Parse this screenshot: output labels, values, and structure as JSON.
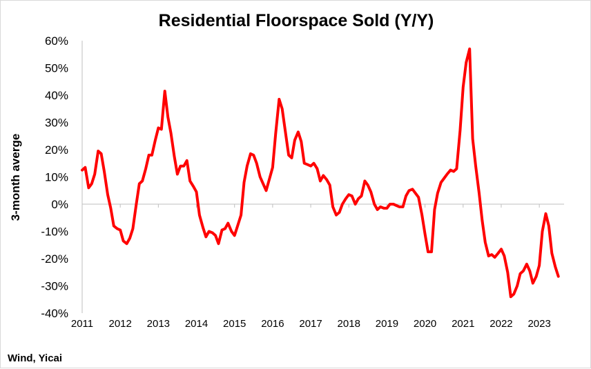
{
  "source_note": "Wind, Yicai",
  "chart_data": {
    "type": "line",
    "title": "Residential Floorspace Sold (Y/Y)",
    "xlabel": "",
    "ylabel": "3-month averge",
    "ylim": [
      -40,
      60
    ],
    "yticks": [
      -40,
      -30,
      -20,
      -10,
      0,
      10,
      20,
      30,
      40,
      50,
      60
    ],
    "ytick_labels": [
      "-40%",
      "-30%",
      "-20%",
      "-10%",
      "0%",
      "10%",
      "20%",
      "30%",
      "40%",
      "50%",
      "60%"
    ],
    "xlim": [
      2011,
      2023.65
    ],
    "xticks": [
      2011,
      2012,
      2013,
      2014,
      2015,
      2016,
      2017,
      2018,
      2019,
      2020,
      2021,
      2022,
      2023
    ],
    "xtick_labels": [
      "2011",
      "2012",
      "2013",
      "2014",
      "2015",
      "2016",
      "2017",
      "2018",
      "2019",
      "2020",
      "2021",
      "2022",
      "2023"
    ],
    "grid": false,
    "legend": "none",
    "line_color": "#ff0000",
    "series": [
      {
        "x": [
          2011.0,
          2011.08,
          2011.17,
          2011.25,
          2011.33,
          2011.42,
          2011.5,
          2011.58,
          2011.67,
          2011.75,
          2011.83,
          2011.92,
          2012.0,
          2012.08,
          2012.17,
          2012.25,
          2012.33,
          2012.42,
          2012.5,
          2012.58,
          2012.67,
          2012.75,
          2012.83,
          2012.92,
          2013.0,
          2013.08,
          2013.17,
          2013.25,
          2013.33,
          2013.42,
          2013.5,
          2013.58,
          2013.67,
          2013.75,
          2013.83,
          2013.92,
          2014.0,
          2014.08,
          2014.17,
          2014.25,
          2014.33,
          2014.42,
          2014.5,
          2014.58,
          2014.67,
          2014.75,
          2014.83,
          2014.92,
          2015.0,
          2015.08,
          2015.17,
          2015.25,
          2015.33,
          2015.42,
          2015.5,
          2015.58,
          2015.67,
          2015.75,
          2015.83,
          2015.92,
          2016.0,
          2016.08,
          2016.17,
          2016.25,
          2016.33,
          2016.42,
          2016.5,
          2016.58,
          2016.67,
          2016.75,
          2016.83,
          2016.92,
          2017.0,
          2017.08,
          2017.17,
          2017.25,
          2017.33,
          2017.42,
          2017.5,
          2017.58,
          2017.67,
          2017.75,
          2017.83,
          2017.92,
          2018.0,
          2018.08,
          2018.17,
          2018.25,
          2018.33,
          2018.42,
          2018.5,
          2018.58,
          2018.67,
          2018.75,
          2018.83,
          2018.92,
          2019.0,
          2019.08,
          2019.17,
          2019.25,
          2019.33,
          2019.42,
          2019.5,
          2019.58,
          2019.67,
          2019.75,
          2019.83,
          2019.92,
          2020.0,
          2020.08,
          2020.17,
          2020.25,
          2020.33,
          2020.42,
          2020.5,
          2020.58,
          2020.67,
          2020.75,
          2020.83,
          2020.92,
          2021.0,
          2021.08,
          2021.17,
          2021.25,
          2021.33,
          2021.42,
          2021.5,
          2021.58,
          2021.67,
          2021.75,
          2021.83,
          2021.92,
          2022.0,
          2022.08,
          2022.17,
          2022.25,
          2022.33,
          2022.42,
          2022.5,
          2022.58,
          2022.67,
          2022.75,
          2022.83,
          2022.92,
          2023.0,
          2023.08,
          2023.17,
          2023.25,
          2023.33,
          2023.42,
          2023.5
        ],
        "values": [
          12.5,
          13.5,
          6.0,
          7.5,
          11.0,
          19.5,
          18.5,
          12.0,
          3.5,
          -1.5,
          -8.0,
          -9.0,
          -9.5,
          -13.5,
          -14.5,
          -12.5,
          -9.0,
          0.0,
          7.5,
          8.5,
          13.0,
          18.0,
          18.0,
          23.5,
          28.0,
          27.5,
          41.5,
          32.0,
          26.0,
          17.5,
          11.0,
          14.0,
          14.0,
          16.0,
          8.5,
          6.5,
          4.5,
          -4.0,
          -8.5,
          -12.0,
          -10.0,
          -10.5,
          -11.5,
          -14.5,
          -9.5,
          -9.0,
          -7.0,
          -10.0,
          -11.5,
          -8.0,
          -4.0,
          8.0,
          14.0,
          18.5,
          18.0,
          15.0,
          10.0,
          7.5,
          5.0,
          9.5,
          13.5,
          26.0,
          38.5,
          35.0,
          27.0,
          18.0,
          17.0,
          23.5,
          26.5,
          23.0,
          15.0,
          14.5,
          14.0,
          15.0,
          13.0,
          8.5,
          10.5,
          9.0,
          7.0,
          -1.0,
          -4.0,
          -3.0,
          0.0,
          2.0,
          3.5,
          3.0,
          0.0,
          2.0,
          3.0,
          8.5,
          7.0,
          4.5,
          0.0,
          -2.0,
          -1.0,
          -1.5,
          -1.5,
          0.0,
          0.0,
          -0.5,
          -1.0,
          -1.0,
          3.0,
          5.0,
          5.5,
          4.0,
          2.5,
          -4.0,
          -11.0,
          -17.5,
          -17.5,
          -2.0,
          4.0,
          8.0,
          9.5,
          11.0,
          12.5,
          12.0,
          13.0,
          27.0,
          43.0,
          52.0,
          57.0,
          24.0,
          14.0,
          4.0,
          -6.0,
          -14.0,
          -19.0,
          -18.5,
          -19.5,
          -18.0,
          -16.5,
          -19.0,
          -25.0,
          -34.0,
          -33.0,
          -30.0,
          -25.5,
          -24.5,
          -22.0,
          -24.5,
          -29.0,
          -26.5,
          -22.5,
          -10.0,
          -3.5,
          -8.0,
          -18.0,
          -23.0,
          -26.5
        ]
      }
    ]
  }
}
